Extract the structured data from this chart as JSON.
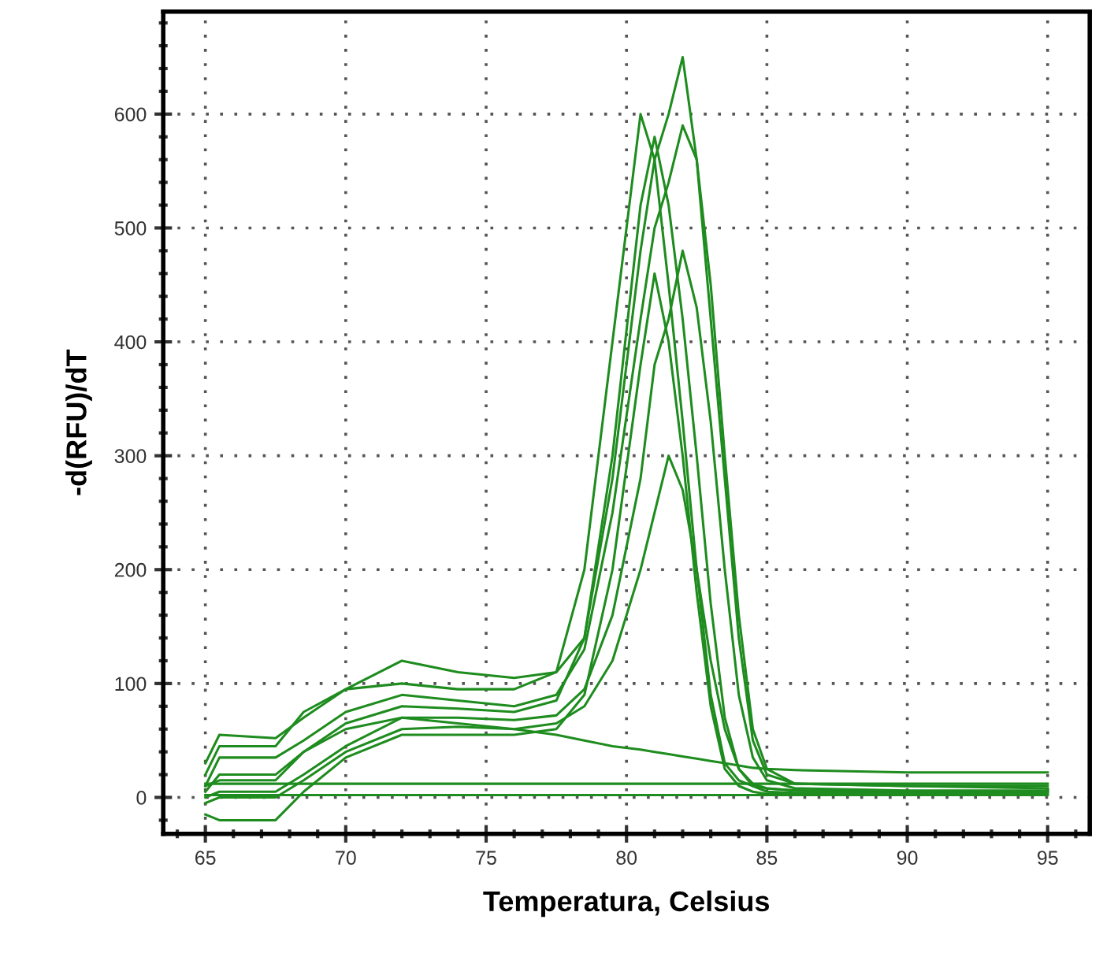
{
  "chart_data": {
    "type": "line",
    "xlabel": "Temperatura, Celsius",
    "ylabel": "-d(RFU)/dT",
    "x": [
      65,
      65.5,
      67.5,
      68.5,
      70,
      72,
      74,
      76,
      77.5,
      78.5,
      79.5,
      80.5,
      81,
      81.5,
      82,
      82.5,
      83,
      83.5,
      84,
      84.5,
      85,
      86,
      90,
      95
    ],
    "series": [
      {
        "color": "#1e8c1e",
        "values": [
          30,
          55,
          52,
          70,
          95,
          120,
          110,
          105,
          110,
          140,
          280,
          480,
          560,
          600,
          650,
          560,
          420,
          280,
          140,
          50,
          20,
          12,
          10,
          8
        ]
      },
      {
        "color": "#1e8c1e",
        "values": [
          20,
          45,
          45,
          75,
          95,
          100,
          95,
          95,
          110,
          200,
          400,
          600,
          560,
          450,
          330,
          200,
          90,
          30,
          15,
          10,
          8,
          6,
          5,
          5
        ]
      },
      {
        "color": "#1e8c1e",
        "values": [
          10,
          35,
          35,
          50,
          75,
          90,
          85,
          80,
          90,
          130,
          250,
          420,
          500,
          540,
          590,
          560,
          450,
          300,
          160,
          60,
          25,
          12,
          10,
          10
        ]
      },
      {
        "color": "#1e8c1e",
        "values": [
          5,
          20,
          20,
          40,
          65,
          80,
          78,
          75,
          85,
          140,
          300,
          520,
          580,
          520,
          420,
          300,
          170,
          70,
          25,
          12,
          8,
          6,
          5,
          5
        ]
      },
      {
        "color": "#1e8c1e",
        "values": [
          0,
          5,
          5,
          20,
          45,
          70,
          70,
          68,
          72,
          95,
          160,
          280,
          380,
          420,
          480,
          430,
          330,
          200,
          90,
          35,
          15,
          8,
          6,
          6
        ]
      },
      {
        "color": "#1e8c1e",
        "values": [
          -5,
          0,
          0,
          15,
          40,
          60,
          62,
          60,
          65,
          80,
          120,
          200,
          250,
          300,
          270,
          200,
          120,
          60,
          25,
          10,
          5,
          4,
          4,
          4
        ]
      },
      {
        "color": "#1e8c1e",
        "values": [
          -15,
          -20,
          -20,
          5,
          35,
          55,
          55,
          55,
          60,
          90,
          200,
          380,
          460,
          400,
          300,
          180,
          80,
          25,
          10,
          5,
          3,
          3,
          3,
          3
        ]
      },
      {
        "color": "#1e8c1e",
        "values": [
          10,
          15,
          15,
          40,
          60,
          70,
          65,
          60,
          55,
          50,
          45,
          42,
          40,
          38,
          36,
          34,
          32,
          30,
          28,
          26,
          25,
          24,
          22,
          22
        ]
      },
      {
        "color": "#1e8c1e",
        "values": [
          12,
          12,
          12,
          12,
          12,
          12,
          12,
          12,
          12,
          12,
          12,
          12,
          12,
          12,
          12,
          12,
          12,
          12,
          12,
          12,
          12,
          12,
          12,
          12
        ]
      },
      {
        "color": "#1e8c1e",
        "values": [
          2,
          2,
          2,
          2,
          2,
          2,
          2,
          2,
          2,
          2,
          2,
          2,
          2,
          2,
          2,
          2,
          2,
          2,
          2,
          2,
          2,
          2,
          2,
          2
        ]
      }
    ],
    "xlim": [
      63.5,
      96.5
    ],
    "xticks": [
      65,
      70,
      75,
      80,
      85,
      90,
      95
    ],
    "ylim": [
      -32,
      690
    ],
    "yticks": [
      0,
      100,
      200,
      300,
      400,
      500,
      600
    ],
    "grid": true,
    "line_style": "solid",
    "marker": "none"
  }
}
